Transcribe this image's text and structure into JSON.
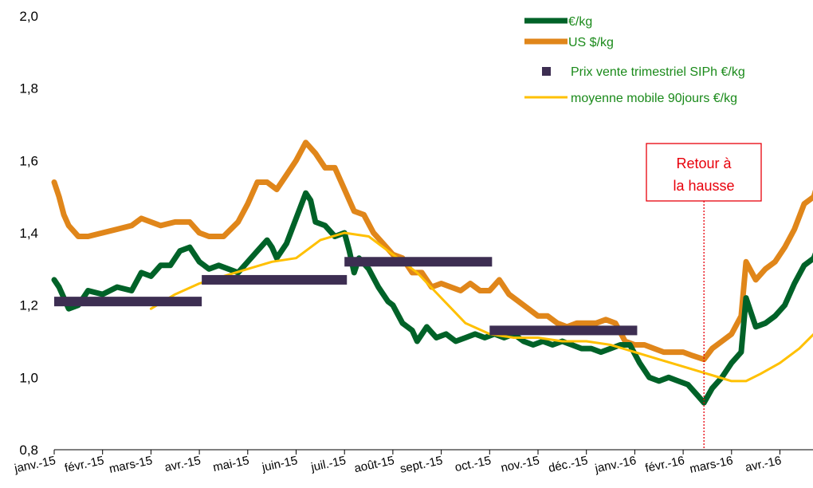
{
  "chart_data": {
    "type": "line",
    "x_categories": [
      "janv.-15",
      "févr.-15",
      "mars-15",
      "avr.-15",
      "mai-15",
      "juin-15",
      "juil.-15",
      "août-15",
      "sept.-15",
      "oct.-15",
      "nov.-15",
      "déc.-15",
      "janv.-16",
      "févr.-16",
      "mars-16",
      "avr.-16"
    ],
    "ylim": [
      0.8,
      2.0
    ],
    "y_ticks": [
      "0,8",
      "1,0",
      "1,2",
      "1,4",
      "1,6",
      "1,8",
      "2,0"
    ],
    "legend": {
      "placement": "top-right",
      "entries": [
        "€/kg",
        "US $/kg",
        "Prix vente trimestriel SIPh €/kg",
        "moyenne mobile 90jours €/kg"
      ]
    },
    "series": [
      {
        "name": "€/kg",
        "color": "#006228",
        "points": [
          [
            0,
            1.27
          ],
          [
            0.1,
            1.25
          ],
          [
            0.2,
            1.22
          ],
          [
            0.3,
            1.19
          ],
          [
            0.5,
            1.2
          ],
          [
            0.7,
            1.24
          ],
          [
            1.0,
            1.23
          ],
          [
            1.3,
            1.25
          ],
          [
            1.6,
            1.24
          ],
          [
            1.8,
            1.29
          ],
          [
            2.0,
            1.28
          ],
          [
            2.2,
            1.31
          ],
          [
            2.4,
            1.31
          ],
          [
            2.6,
            1.35
          ],
          [
            2.8,
            1.36
          ],
          [
            3.0,
            1.32
          ],
          [
            3.2,
            1.3
          ],
          [
            3.4,
            1.31
          ],
          [
            3.6,
            1.3
          ],
          [
            3.8,
            1.29
          ],
          [
            4.0,
            1.32
          ],
          [
            4.2,
            1.35
          ],
          [
            4.4,
            1.38
          ],
          [
            4.5,
            1.36
          ],
          [
            4.6,
            1.33
          ],
          [
            4.8,
            1.37
          ],
          [
            5.0,
            1.44
          ],
          [
            5.2,
            1.51
          ],
          [
            5.3,
            1.49
          ],
          [
            5.4,
            1.43
          ],
          [
            5.6,
            1.42
          ],
          [
            5.8,
            1.39
          ],
          [
            6.0,
            1.4
          ],
          [
            6.1,
            1.35
          ],
          [
            6.2,
            1.29
          ],
          [
            6.3,
            1.33
          ],
          [
            6.5,
            1.3
          ],
          [
            6.7,
            1.25
          ],
          [
            6.9,
            1.21
          ],
          [
            7.0,
            1.2
          ],
          [
            7.2,
            1.15
          ],
          [
            7.4,
            1.13
          ],
          [
            7.5,
            1.1
          ],
          [
            7.7,
            1.14
          ],
          [
            7.9,
            1.11
          ],
          [
            8.1,
            1.12
          ],
          [
            8.3,
            1.1
          ],
          [
            8.5,
            1.11
          ],
          [
            8.7,
            1.12
          ],
          [
            8.9,
            1.11
          ],
          [
            9.1,
            1.12
          ],
          [
            9.3,
            1.11
          ],
          [
            9.5,
            1.12
          ],
          [
            9.7,
            1.1
          ],
          [
            9.9,
            1.09
          ],
          [
            10.1,
            1.1
          ],
          [
            10.3,
            1.09
          ],
          [
            10.5,
            1.1
          ],
          [
            10.7,
            1.09
          ],
          [
            10.9,
            1.08
          ],
          [
            11.1,
            1.08
          ],
          [
            11.3,
            1.07
          ],
          [
            11.5,
            1.08
          ],
          [
            11.7,
            1.09
          ],
          [
            11.9,
            1.09
          ],
          [
            12.1,
            1.04
          ],
          [
            12.3,
            1.0
          ],
          [
            12.5,
            0.99
          ],
          [
            12.7,
            1.0
          ],
          [
            12.9,
            0.99
          ],
          [
            13.1,
            0.98
          ],
          [
            13.3,
            0.95
          ],
          [
            13.43,
            0.93
          ],
          [
            13.6,
            0.97
          ],
          [
            13.8,
            1.0
          ],
          [
            14.0,
            1.04
          ],
          [
            14.2,
            1.07
          ],
          [
            14.3,
            1.22
          ],
          [
            14.5,
            1.14
          ],
          [
            14.7,
            1.15
          ],
          [
            14.9,
            1.17
          ],
          [
            15.1,
            1.2
          ],
          [
            15.3,
            1.26
          ],
          [
            15.5,
            1.31
          ],
          [
            15.7,
            1.33
          ],
          [
            15.9,
            1.4
          ]
        ]
      },
      {
        "name": "US $/kg",
        "color": "#e0861a",
        "points": [
          [
            0,
            1.54
          ],
          [
            0.1,
            1.5
          ],
          [
            0.2,
            1.45
          ],
          [
            0.3,
            1.42
          ],
          [
            0.5,
            1.39
          ],
          [
            0.7,
            1.39
          ],
          [
            1.0,
            1.4
          ],
          [
            1.3,
            1.41
          ],
          [
            1.6,
            1.42
          ],
          [
            1.8,
            1.44
          ],
          [
            2.0,
            1.43
          ],
          [
            2.2,
            1.42
          ],
          [
            2.5,
            1.43
          ],
          [
            2.8,
            1.43
          ],
          [
            3.0,
            1.4
          ],
          [
            3.2,
            1.39
          ],
          [
            3.5,
            1.39
          ],
          [
            3.8,
            1.43
          ],
          [
            4.0,
            1.48
          ],
          [
            4.2,
            1.54
          ],
          [
            4.4,
            1.54
          ],
          [
            4.6,
            1.52
          ],
          [
            4.8,
            1.56
          ],
          [
            5.0,
            1.6
          ],
          [
            5.2,
            1.65
          ],
          [
            5.4,
            1.62
          ],
          [
            5.6,
            1.58
          ],
          [
            5.8,
            1.58
          ],
          [
            6.0,
            1.52
          ],
          [
            6.2,
            1.46
          ],
          [
            6.4,
            1.45
          ],
          [
            6.6,
            1.4
          ],
          [
            6.8,
            1.37
          ],
          [
            7.0,
            1.34
          ],
          [
            7.2,
            1.33
          ],
          [
            7.4,
            1.29
          ],
          [
            7.6,
            1.29
          ],
          [
            7.8,
            1.25
          ],
          [
            8.0,
            1.26
          ],
          [
            8.2,
            1.25
          ],
          [
            8.4,
            1.24
          ],
          [
            8.6,
            1.26
          ],
          [
            8.8,
            1.24
          ],
          [
            9.0,
            1.24
          ],
          [
            9.2,
            1.27
          ],
          [
            9.4,
            1.23
          ],
          [
            9.6,
            1.21
          ],
          [
            9.8,
            1.19
          ],
          [
            10.0,
            1.17
          ],
          [
            10.2,
            1.17
          ],
          [
            10.4,
            1.15
          ],
          [
            10.6,
            1.14
          ],
          [
            10.8,
            1.15
          ],
          [
            11.0,
            1.15
          ],
          [
            11.2,
            1.15
          ],
          [
            11.4,
            1.16
          ],
          [
            11.6,
            1.15
          ],
          [
            11.8,
            1.1
          ],
          [
            12.0,
            1.09
          ],
          [
            12.2,
            1.09
          ],
          [
            12.4,
            1.08
          ],
          [
            12.6,
            1.07
          ],
          [
            12.8,
            1.07
          ],
          [
            13.0,
            1.07
          ],
          [
            13.2,
            1.06
          ],
          [
            13.43,
            1.05
          ],
          [
            13.6,
            1.08
          ],
          [
            13.8,
            1.1
          ],
          [
            14.0,
            1.12
          ],
          [
            14.2,
            1.17
          ],
          [
            14.3,
            1.32
          ],
          [
            14.5,
            1.27
          ],
          [
            14.7,
            1.3
          ],
          [
            14.9,
            1.32
          ],
          [
            15.1,
            1.36
          ],
          [
            15.3,
            1.41
          ],
          [
            15.5,
            1.48
          ],
          [
            15.7,
            1.5
          ],
          [
            15.9,
            1.59
          ]
        ]
      },
      {
        "name": "moyenne mobile 90jours €/kg",
        "color": "#ffc000",
        "points": [
          [
            2.0,
            1.19
          ],
          [
            2.5,
            1.23
          ],
          [
            3.0,
            1.26
          ],
          [
            3.5,
            1.28
          ],
          [
            4.0,
            1.3
          ],
          [
            4.5,
            1.32
          ],
          [
            5.0,
            1.33
          ],
          [
            5.5,
            1.38
          ],
          [
            6.0,
            1.4
          ],
          [
            6.5,
            1.39
          ],
          [
            7.0,
            1.34
          ],
          [
            7.5,
            1.29
          ],
          [
            8.0,
            1.22
          ],
          [
            8.5,
            1.15
          ],
          [
            9.0,
            1.12
          ],
          [
            9.5,
            1.11
          ],
          [
            10.0,
            1.11
          ],
          [
            10.5,
            1.1
          ],
          [
            11.0,
            1.1
          ],
          [
            11.5,
            1.09
          ],
          [
            12.0,
            1.07
          ],
          [
            12.5,
            1.05
          ],
          [
            13.0,
            1.03
          ],
          [
            13.5,
            1.01
          ],
          [
            14.0,
            0.99
          ],
          [
            14.3,
            0.99
          ],
          [
            14.6,
            1.01
          ],
          [
            15.0,
            1.04
          ],
          [
            15.4,
            1.08
          ],
          [
            15.7,
            1.12
          ],
          [
            15.95,
            1.18
          ]
        ]
      }
    ],
    "quarterly_price": {
      "name": "Prix vente trimestriel SIPh €/kg",
      "color": "#3d2e52",
      "segments": [
        {
          "x_start": 0,
          "x_end": 3.05,
          "value": 1.21
        },
        {
          "x_start": 3.05,
          "x_end": 6.05,
          "value": 1.27
        },
        {
          "x_start": 6.0,
          "x_end": 9.05,
          "value": 1.32
        },
        {
          "x_start": 9.0,
          "x_end": 12.05,
          "value": 1.13
        }
      ]
    },
    "annotation": {
      "text_line1": "Retour à",
      "text_line2": "la hausse",
      "x": 13.43,
      "color": "#e8000b"
    }
  }
}
